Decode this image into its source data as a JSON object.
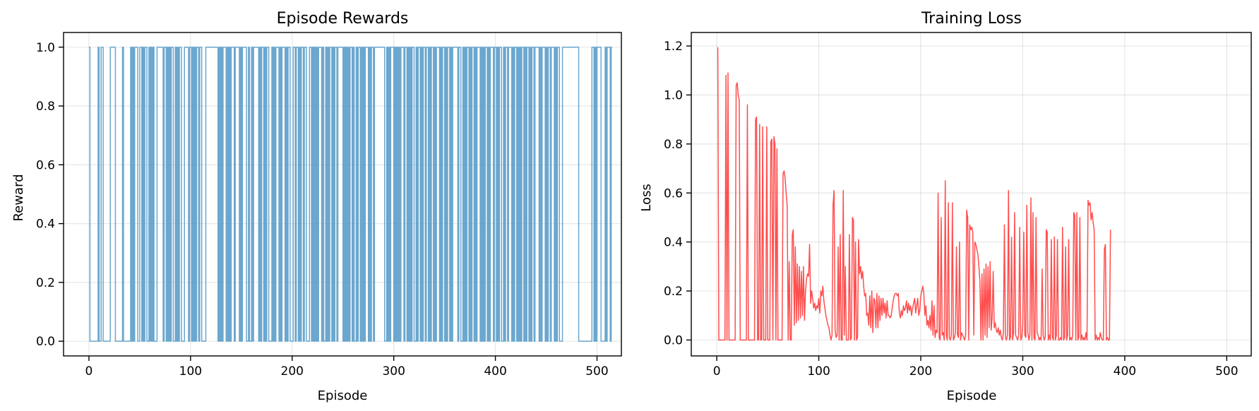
{
  "figure": {
    "background": "#ffffff"
  },
  "chart_data": [
    {
      "type": "line",
      "step": true,
      "title": "Episode Rewards",
      "xlabel": "Episode",
      "ylabel": "Reward",
      "xlim": [
        -25,
        524
      ],
      "ylim": [
        -0.05,
        1.05
      ],
      "xticks": [
        0,
        100,
        200,
        300,
        400,
        500
      ],
      "xtick_labels": [
        "0",
        "100",
        "200",
        "300",
        "400",
        "500"
      ],
      "yticks": [
        0.0,
        0.2,
        0.4,
        0.6,
        0.8,
        1.0
      ],
      "ytick_labels": [
        "0.0",
        "0.2",
        "0.4",
        "0.6",
        "0.8",
        "1.0"
      ],
      "grid": true,
      "color": "#5b9dc9",
      "alpha": 0.9,
      "series": [
        {
          "x_start": 0,
          "values": [
            1,
            0,
            0,
            0,
            0,
            0,
            0,
            0,
            0,
            1,
            0,
            0,
            1,
            1,
            0,
            0,
            0,
            0,
            0,
            0,
            0,
            1,
            1,
            1,
            1,
            1,
            0,
            0,
            0,
            0,
            0,
            0,
            0,
            1,
            0,
            0,
            0,
            0,
            0,
            0,
            0,
            1,
            0,
            1,
            0,
            1,
            1,
            1,
            0,
            0,
            1,
            1,
            0,
            1,
            0,
            1,
            1,
            0,
            0,
            1,
            0,
            1,
            0,
            1,
            0,
            0,
            0,
            1,
            1,
            1,
            1,
            1,
            1,
            0,
            1,
            1,
            0,
            1,
            0,
            1,
            0,
            1,
            1,
            0,
            0,
            1,
            0,
            1,
            0,
            1,
            1,
            0,
            0,
            0,
            1,
            1,
            1,
            1,
            0,
            1,
            1,
            0,
            1,
            0,
            1,
            0,
            1,
            1,
            0,
            1,
            1,
            0,
            0,
            0,
            0,
            1,
            1,
            1,
            1,
            1,
            1,
            1,
            1,
            1,
            1,
            1,
            1,
            0,
            1,
            0,
            1,
            0,
            1,
            1,
            1,
            0,
            1,
            0,
            1,
            0,
            1,
            1,
            1,
            0,
            1,
            1,
            1,
            1,
            0,
            1,
            0,
            1,
            1,
            1,
            1,
            0,
            0,
            1,
            0,
            0,
            1,
            0,
            1,
            1,
            1,
            1,
            1,
            0,
            1,
            0,
            1,
            1,
            0,
            1,
            0,
            1,
            1,
            0,
            0,
            0,
            1,
            0,
            1,
            0,
            1,
            1,
            1,
            0,
            1,
            0,
            1,
            1,
            1,
            0,
            1,
            0,
            1,
            1,
            0,
            0,
            0,
            1,
            1,
            0,
            1,
            1,
            0,
            1,
            0,
            1,
            1,
            0,
            1,
            1,
            0,
            0,
            0,
            1,
            1,
            0,
            1,
            0,
            1,
            0,
            1,
            0,
            1,
            1,
            1,
            0,
            1,
            0,
            0,
            1,
            0,
            1,
            0,
            1,
            1,
            0,
            1,
            0,
            1,
            1,
            0,
            1,
            1,
            1,
            1,
            1,
            0,
            1,
            0,
            1,
            0,
            1,
            0,
            1,
            1,
            0,
            1,
            0,
            0,
            1,
            0,
            1,
            1,
            0,
            1,
            0,
            1,
            0,
            1,
            1,
            1,
            0,
            1,
            0,
            1,
            1,
            0,
            1,
            1,
            1,
            1,
            1,
            1,
            1,
            1,
            1,
            1,
            0,
            0,
            1,
            0,
            1,
            0,
            1,
            1,
            1,
            0,
            1,
            0,
            1,
            0,
            1,
            0,
            1,
            1,
            1,
            0,
            1,
            1,
            0,
            1,
            0,
            1,
            0,
            1,
            1,
            0,
            0,
            1,
            0,
            1,
            1,
            0,
            1,
            0,
            1,
            1,
            0,
            1,
            1,
            0,
            1,
            0,
            1,
            1,
            0,
            1,
            0,
            1,
            1,
            1,
            0,
            1,
            0,
            1,
            1,
            0,
            1,
            0,
            1,
            1,
            0,
            1,
            0,
            1,
            1,
            1,
            1,
            1,
            0,
            1,
            1,
            0,
            0,
            1,
            0,
            1,
            0,
            1,
            1,
            0,
            1,
            0,
            1,
            1,
            0,
            1,
            0,
            1,
            1,
            1,
            0,
            1,
            0,
            1,
            0,
            1,
            1,
            0,
            1,
            0,
            1,
            1,
            1,
            0,
            1,
            1,
            0,
            1,
            0,
            1,
            1,
            0,
            0,
            1,
            0,
            1,
            1,
            0,
            1,
            1,
            1,
            0,
            1,
            0,
            1,
            1,
            0,
            1,
            0,
            1,
            0,
            1,
            1,
            0,
            1,
            0,
            1,
            1,
            0,
            1,
            0,
            1,
            1,
            0,
            1,
            1,
            1,
            1,
            0,
            1,
            0,
            1,
            1,
            1,
            0,
            1,
            0,
            1,
            1,
            0,
            1,
            1,
            1,
            0,
            1,
            0,
            1,
            1,
            0,
            0,
            0,
            1,
            1,
            1,
            1,
            1,
            1,
            1,
            1,
            1,
            1,
            1,
            1,
            1,
            1,
            1,
            1,
            0,
            0,
            0,
            0,
            0,
            0,
            0,
            0,
            0,
            0,
            0,
            0,
            0,
            1,
            1,
            0,
            1,
            0,
            1,
            1,
            1,
            1,
            0,
            0,
            0,
            0,
            1,
            0,
            1,
            1,
            1,
            0,
            1,
            1
          ]
        }
      ]
    },
    {
      "type": "line",
      "title": "Training Loss",
      "xlabel": "Episode",
      "ylabel": "Loss",
      "xlim": [
        -25,
        524
      ],
      "ylim": [
        -0.065,
        1.255
      ],
      "xticks": [
        0,
        100,
        200,
        300,
        400,
        500
      ],
      "xtick_labels": [
        "0",
        "100",
        "200",
        "300",
        "400",
        "500"
      ],
      "yticks": [
        0.0,
        0.2,
        0.4,
        0.6,
        0.8,
        1.0,
        1.2
      ],
      "ytick_labels": [
        "0.0",
        "0.2",
        "0.4",
        "0.6",
        "0.8",
        "1.0",
        "1.2"
      ],
      "grid": true,
      "color": "#ff3b3b",
      "alpha": 0.9,
      "series": [
        {
          "x_start": 1,
          "values": [
            1.195,
            0.0,
            0.0,
            0.0,
            0.0,
            0.0,
            0.0,
            0.0,
            1.08,
            0.0,
            1.09,
            0.0,
            0.0,
            0.0,
            0.0,
            0.0,
            0.0,
            0.0,
            1.04,
            1.05,
            1.0,
            0.98,
            0.0,
            0.0,
            0.0,
            0.0,
            0.0,
            0.0,
            0.0,
            0.96,
            0.0,
            0.0,
            0.0,
            0.0,
            0.0,
            0.0,
            0.0,
            0.9,
            0.91,
            0.0,
            0.0,
            0.88,
            0.0,
            0.0,
            0.87,
            0.0,
            0.0,
            0.0,
            0.87,
            0.0,
            0.0,
            0.0,
            0.81,
            0.82,
            0.0,
            0.83,
            0.8,
            0.0,
            0.78,
            0.0,
            0.0,
            0.0,
            0.0,
            0.0,
            0.68,
            0.69,
            0.66,
            0.6,
            0.55,
            0.0,
            0.32,
            0.0,
            0.0,
            0.43,
            0.45,
            0.06,
            0.38,
            0.07,
            0.31,
            0.08,
            0.3,
            0.09,
            0.28,
            0.1,
            0.3,
            0.08,
            0.2,
            0.25,
            0.27,
            0.26,
            0.39,
            0.15,
            0.2,
            0.17,
            0.13,
            0.15,
            0.12,
            0.14,
            0.13,
            0.17,
            0.11,
            0.2,
            0.18,
            0.22,
            0.16,
            0.13,
            0.1,
            0.08,
            0.06,
            0.05,
            0.02,
            0.0,
            0.02,
            0.55,
            0.61,
            0.04,
            0.01,
            0.02,
            0.38,
            0.0,
            0.43,
            0.0,
            0.0,
            0.61,
            0.02,
            0.3,
            0.0,
            0.0,
            0.0,
            0.43,
            0.0,
            0.01,
            0.5,
            0.49,
            0.0,
            0.4,
            0.0,
            0.01,
            0.41,
            0.27,
            0.3,
            0.25,
            0.28,
            0.22,
            0.18,
            0.19,
            0.1,
            0.11,
            0.06,
            0.18,
            0.05,
            0.2,
            0.03,
            0.17,
            0.16,
            0.05,
            0.19,
            0.05,
            0.18,
            0.08,
            0.17,
            0.1,
            0.17,
            0.11,
            0.15,
            0.09,
            0.16,
            0.1,
            0.1,
            0.09,
            0.1,
            0.13,
            0.16,
            0.18,
            0.19,
            0.19,
            0.18,
            0.19,
            0.11,
            0.09,
            0.12,
            0.1,
            0.14,
            0.12,
            0.13,
            0.16,
            0.11,
            0.15,
            0.12,
            0.14,
            0.1,
            0.13,
            0.15,
            0.17,
            0.11,
            0.14,
            0.17,
            0.1,
            0.12,
            0.18,
            0.2,
            0.22,
            0.19,
            0.1,
            0.14,
            0.06,
            0.08,
            0.05,
            0.1,
            0.04,
            0.16,
            0.02,
            0.14,
            0.01,
            0.04,
            0.03,
            0.6,
            0.01,
            0.0,
            0.5,
            0.02,
            0.03,
            0.0,
            0.65,
            0.02,
            0.0,
            0.56,
            0.01,
            0.0,
            0.02,
            0.56,
            0.0,
            0.01,
            0.03,
            0.38,
            0.02,
            0.01,
            0.4,
            0.0,
            0.03,
            0.02,
            0.01,
            0.0,
            0.02,
            0.53,
            0.5,
            0.0,
            0.47,
            0.45,
            0.46,
            0.44,
            0.02,
            0.4,
            0.39,
            0.37,
            0.35,
            0.3,
            0.24,
            0.0,
            0.27,
            0.0,
            0.29,
            0.02,
            0.31,
            0.01,
            0.3,
            0.05,
            0.32,
            0.04,
            0.09,
            0.28,
            0.05,
            0.07,
            0.04,
            0.03,
            0.05,
            0.02,
            0.04,
            0.01,
            0.0,
            0.03,
            0.47,
            0.01,
            0.0,
            0.02,
            0.61,
            0.0,
            0.01,
            0.42,
            0.0,
            0.03,
            0.52,
            0.02,
            0.01,
            0.0,
            0.02,
            0.46,
            0.0,
            0.01,
            0.06,
            0.44,
            0.02,
            0.01,
            0.55,
            0.03,
            0.0,
            0.02,
            0.58,
            0.0,
            0.52,
            0.01,
            0.0,
            0.5,
            0.03,
            0.02,
            0.0,
            0.01,
            0.0,
            0.29,
            0.02,
            0.0,
            0.01,
            0.45,
            0.44,
            0.0,
            0.02,
            0.0,
            0.41,
            0.01,
            0.0,
            0.42,
            0.0,
            0.02,
            0.41,
            0.0,
            0.0,
            0.01,
            0.0,
            0.46,
            0.0,
            0.01,
            0.38,
            0.0,
            0.02,
            0.41,
            0.0,
            0.01,
            0.0,
            0.02,
            0.52,
            0.51,
            0.0,
            0.52,
            0.0,
            0.01,
            0.5,
            0.0,
            0.02,
            0.0,
            0.01,
            0.0,
            0.03,
            0.0,
            0.57,
            0.55,
            0.56,
            0.49,
            0.52,
            0.48,
            0.45,
            0.0,
            0.02,
            0.0,
            0.01,
            0.0,
            0.03,
            0.01,
            0.0,
            0.0,
            0.37,
            0.39,
            0.0,
            0.01,
            0.0,
            0.0,
            0.45
          ]
        }
      ]
    }
  ]
}
